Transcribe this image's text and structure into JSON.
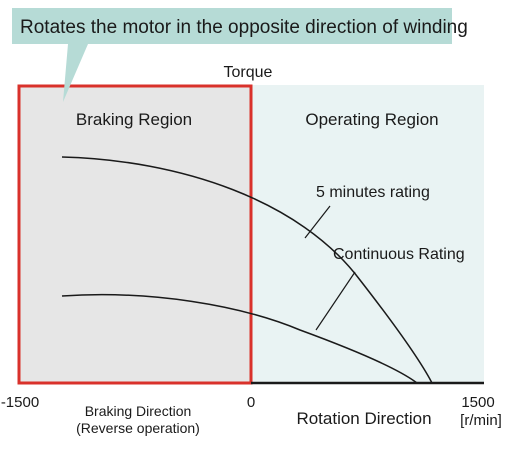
{
  "callout": {
    "text": "Rotates the motor in the opposite direction of winding",
    "fill_color": "#b6dbd6"
  },
  "y_axis_label": "Torque",
  "regions": {
    "braking": {
      "label": "Braking Region",
      "fill_color": "#e6e6e6",
      "border_color": "#d9312b"
    },
    "operating": {
      "label": "Operating Region",
      "fill_color": "#e9f3f3"
    }
  },
  "x_axis": {
    "label": "Rotation Direction",
    "unit": "[r/min]",
    "ticks": [
      "-1500",
      "0",
      "1500"
    ],
    "braking_direction": [
      "Braking Direction",
      "(Reverse operation)"
    ]
  },
  "curves": [
    {
      "label": "5 minutes rating"
    },
    {
      "label": "Continuous Rating"
    }
  ],
  "line_color": "#1a1a1a"
}
